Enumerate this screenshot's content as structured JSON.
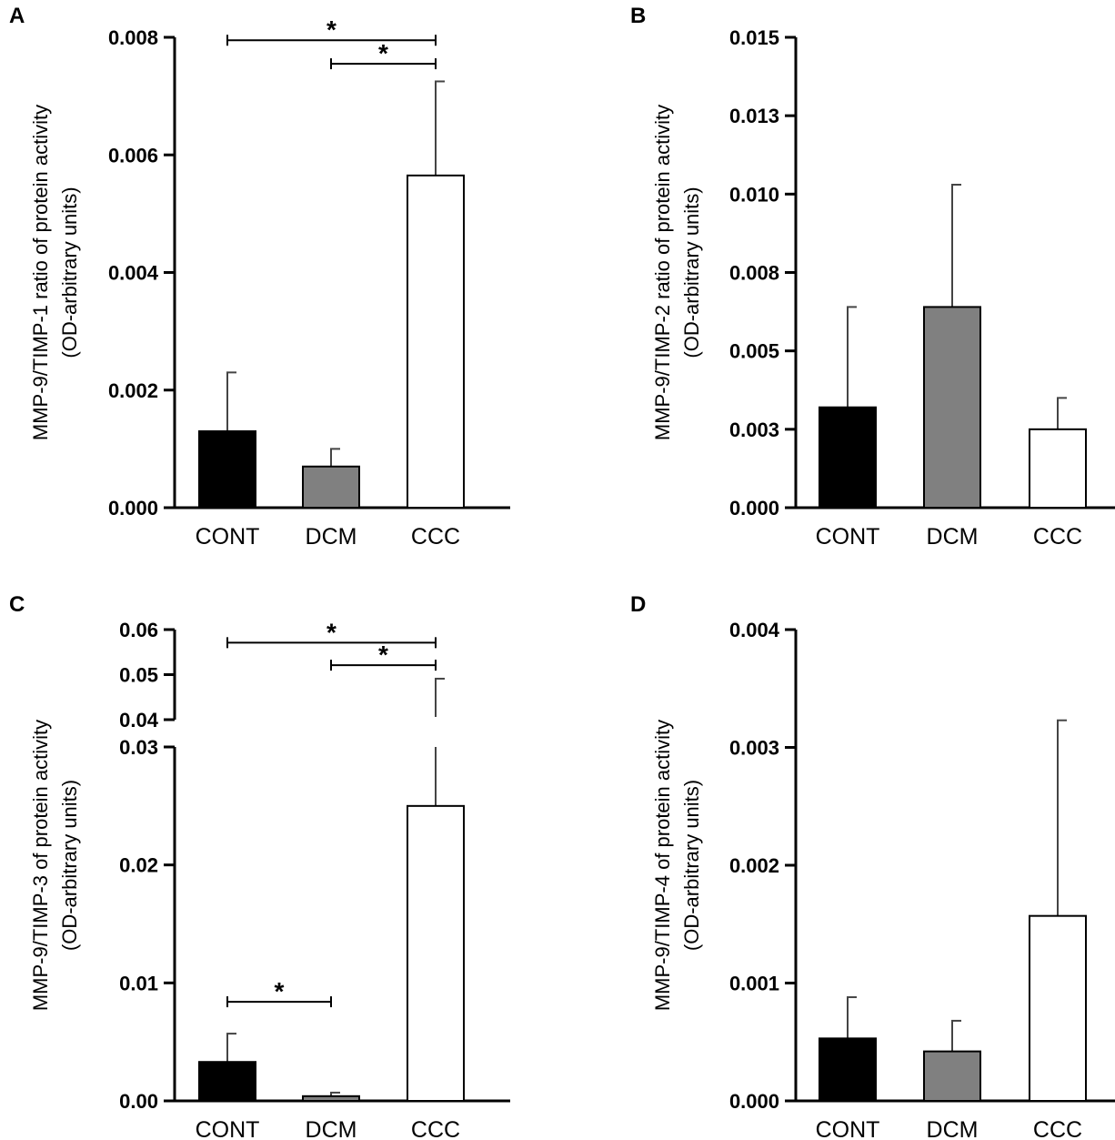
{
  "figure_title": "",
  "colors": {
    "CONT": "#000000",
    "DCM": "#808080",
    "CCC": "#ffffff",
    "axis": "#000000"
  },
  "chart_data": [
    {
      "id": "A",
      "panel_label": "A",
      "type": "bar",
      "ylabel": [
        "MMP-9/TIMP-1 ratio of protein activity",
        "(OD-arbitrary units)"
      ],
      "categories": [
        "CONT",
        "DCM",
        "CCC"
      ],
      "values": [
        0.0013,
        0.0007,
        0.00565
      ],
      "errors": [
        0.001,
        0.0003,
        0.0016
      ],
      "ylim": [
        0,
        0.008
      ],
      "ticks": [
        0,
        0.002,
        0.004,
        0.006,
        0.008
      ],
      "tick_labels": [
        "0.000",
        "0.002",
        "0.004",
        "0.006",
        "0.008"
      ],
      "significance": [
        {
          "from": 0,
          "to": 2,
          "y": 0.00795,
          "label": "*"
        },
        {
          "from": 1,
          "to": 2,
          "y": 0.00755,
          "label": "*"
        }
      ]
    },
    {
      "id": "B",
      "panel_label": "B",
      "type": "bar",
      "ylabel": [
        "MMP-9/TIMP-2 ratio of protein activity",
        "(OD-arbitrary units)"
      ],
      "categories": [
        "CONT",
        "DCM",
        "CCC"
      ],
      "values": [
        0.0032,
        0.0064,
        0.0025
      ],
      "errors": [
        0.0032,
        0.0039,
        0.001
      ],
      "ylim": [
        0,
        0.015
      ],
      "ticks": [
        0,
        0.0025,
        0.005,
        0.0075,
        0.01,
        0.0125,
        0.015
      ],
      "tick_labels": [
        "0.000",
        "0.003",
        "0.005",
        "0.008",
        "0.010",
        "0.013",
        "0.015"
      ],
      "significance": []
    },
    {
      "id": "C",
      "panel_label": "C",
      "type": "bar",
      "ylabel": [
        "MMP-9/TIMP-3 of protein activity",
        "(OD-arbitrary units)"
      ],
      "categories": [
        "CONT",
        "DCM",
        "CCC"
      ],
      "values": [
        0.0033,
        0.0004,
        0.025
      ],
      "errors": [
        0.0024,
        0.0003,
        0.0241
      ],
      "ylim": [
        0,
        0.06
      ],
      "axis_break": [
        0.03,
        0.04
      ],
      "ticks": [
        0,
        0.01,
        0.02,
        0.03,
        0.04,
        0.05,
        0.06
      ],
      "tick_labels": [
        "0.00",
        "0.01",
        "0.02",
        "0.03",
        "0.04",
        "0.05",
        "0.06"
      ],
      "significance": [
        {
          "from": 0,
          "to": 2,
          "y": 0.0571,
          "label": "*"
        },
        {
          "from": 1,
          "to": 2,
          "y": 0.0521,
          "label": "*"
        },
        {
          "from": 0,
          "to": 1,
          "y": 0.0084,
          "label": "*"
        }
      ]
    },
    {
      "id": "D",
      "panel_label": "D",
      "type": "bar",
      "ylabel": [
        "MMP-9/TIMP-4 of protein activity",
        "(OD-arbitrary units)"
      ],
      "categories": [
        "CONT",
        "DCM",
        "CCC"
      ],
      "values": [
        0.00053,
        0.00042,
        0.00157
      ],
      "errors": [
        0.00035,
        0.00026,
        0.00166
      ],
      "ylim": [
        0,
        0.004
      ],
      "ticks": [
        0,
        0.001,
        0.002,
        0.003,
        0.004
      ],
      "tick_labels": [
        "0.000",
        "0.001",
        "0.002",
        "0.003",
        "0.004"
      ],
      "significance": []
    }
  ]
}
